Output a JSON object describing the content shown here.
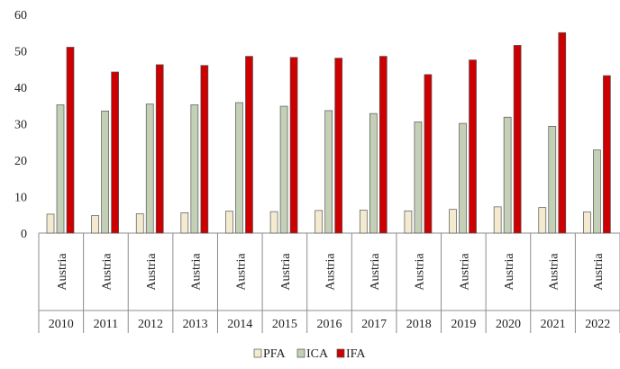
{
  "chart_data": {
    "type": "bar",
    "category_label": "Austria",
    "categories": [
      "2010",
      "2011",
      "2012",
      "2013",
      "2014",
      "2015",
      "2016",
      "2017",
      "2018",
      "2019",
      "2020",
      "2021",
      "2022"
    ],
    "series": [
      {
        "name": "PFA",
        "color": "#f3ead0",
        "values": [
          5.2,
          4.8,
          5.3,
          5.6,
          6.0,
          5.9,
          6.2,
          6.3,
          6.1,
          6.5,
          7.2,
          7.0,
          5.8
        ]
      },
      {
        "name": "ICA",
        "color": "#c4d0b6",
        "values": [
          35.2,
          33.5,
          35.4,
          35.2,
          35.8,
          34.8,
          33.6,
          32.8,
          30.5,
          30.1,
          31.8,
          29.3,
          22.8
        ]
      },
      {
        "name": "IFA",
        "color": "#cc0000",
        "values": [
          51.0,
          44.2,
          46.2,
          46.0,
          48.5,
          48.2,
          48.0,
          48.5,
          43.5,
          47.5,
          51.5,
          55.0,
          43.2
        ]
      }
    ],
    "yticks": [
      0,
      10,
      20,
      30,
      40,
      50,
      60
    ],
    "ylim": [
      0,
      60
    ],
    "title": "",
    "xlabel": "",
    "ylabel": "",
    "grid": false,
    "legend_position": "bottom-center"
  }
}
